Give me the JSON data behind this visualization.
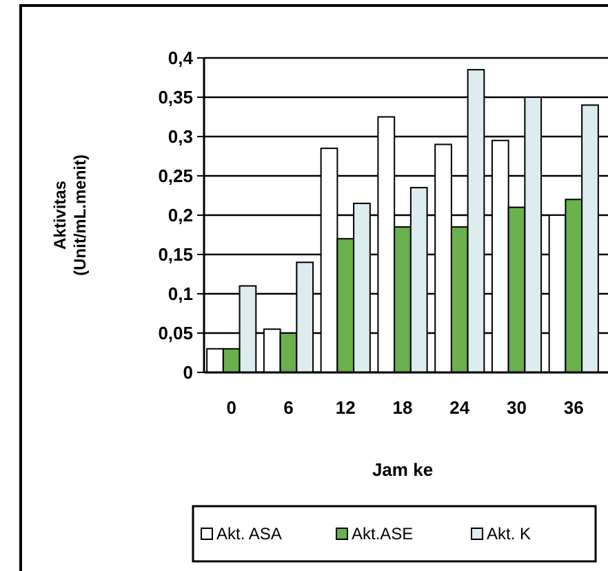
{
  "chart_data": {
    "type": "bar",
    "xlabel": "Jam ke",
    "ylabel": "Aktivitas (Unit/mL.menit)",
    "categories": [
      "0",
      "6",
      "12",
      "18",
      "24",
      "30",
      "36"
    ],
    "series": [
      {
        "name": "Akt. ASA",
        "color": "#ffffff",
        "values": [
          0.03,
          0.055,
          0.285,
          0.325,
          0.29,
          0.295,
          0.2
        ]
      },
      {
        "name": "Akt.ASE",
        "color": "#6ab04c",
        "values": [
          0.03,
          0.05,
          0.17,
          0.185,
          0.185,
          0.21,
          0.22
        ]
      },
      {
        "name": "Akt. K",
        "color": "#dcecef",
        "values": [
          0.11,
          0.14,
          0.215,
          0.235,
          0.385,
          0.35,
          0.34
        ]
      }
    ],
    "ylim": [
      0,
      0.4
    ],
    "yticks": [
      {
        "value": 0,
        "label": "0"
      },
      {
        "value": 0.05,
        "label": "0,05"
      },
      {
        "value": 0.1,
        "label": "0,1"
      },
      {
        "value": 0.15,
        "label": "0,15"
      },
      {
        "value": 0.2,
        "label": "0,2"
      },
      {
        "value": 0.25,
        "label": "0,25"
      },
      {
        "value": 0.3,
        "label": "0,3"
      },
      {
        "value": 0.35,
        "label": "0,35"
      },
      {
        "value": 0.4,
        "label": "0,4"
      }
    ],
    "grid": "y",
    "legend": "bottom"
  }
}
